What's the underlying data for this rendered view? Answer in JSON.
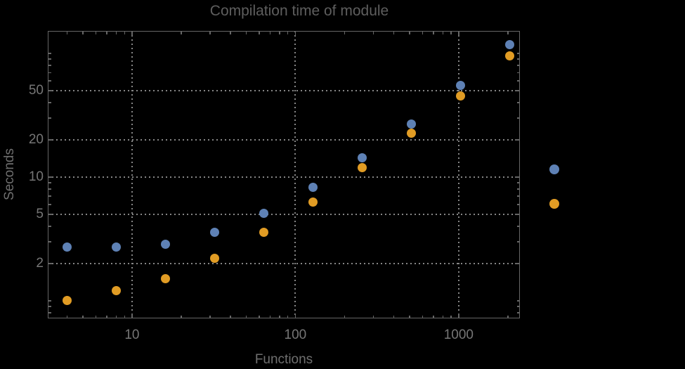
{
  "chart_data": {
    "type": "scatter",
    "title": "Compilation time of module",
    "xlabel": "Functions",
    "ylabel": "Seconds",
    "x_scale": "log",
    "y_scale": "log",
    "grid": true,
    "x_range": [
      3.05,
      2370
    ],
    "y_range": [
      0.72,
      152
    ],
    "x_tick_values": [
      10,
      100,
      1000
    ],
    "x_tick_labels": [
      "10",
      "100",
      "1000"
    ],
    "y_tick_values": [
      2,
      5,
      10,
      20,
      50
    ],
    "y_tick_labels": [
      "2",
      "5",
      "10",
      "20",
      "50"
    ],
    "series": [
      {
        "name": "blue-series",
        "color": "#5e81b5",
        "points": [
          [
            4,
            2.7
          ],
          [
            8,
            2.7
          ],
          [
            16,
            2.85
          ],
          [
            32,
            3.6
          ],
          [
            64,
            5.1
          ],
          [
            128,
            8.3
          ],
          [
            256,
            14.4
          ],
          [
            512,
            27
          ],
          [
            1024,
            55
          ],
          [
            2048,
            118
          ]
        ]
      },
      {
        "name": "orange-series",
        "color": "#e19c24",
        "points": [
          [
            4,
            1.0
          ],
          [
            8,
            1.2
          ],
          [
            16,
            1.5
          ],
          [
            32,
            2.2
          ],
          [
            64,
            3.6
          ],
          [
            128,
            6.3
          ],
          [
            256,
            12
          ],
          [
            512,
            22.5
          ],
          [
            1024,
            45.5
          ],
          [
            2048,
            96
          ]
        ]
      }
    ],
    "legend": {
      "position": "right-outside",
      "markers": [
        {
          "name": "blue-series-marker",
          "color": "#5e81b5"
        },
        {
          "name": "orange-series-marker",
          "color": "#e19c24"
        }
      ]
    }
  },
  "colors": {
    "background": "#000000",
    "frame": "#666666",
    "gridline": "#868686",
    "title_text": "#5e5e5e",
    "tick_text": "#767676",
    "axis_label_text": "#6f6f6f",
    "series_blue": "#5e81b5",
    "series_orange": "#e19c24"
  }
}
